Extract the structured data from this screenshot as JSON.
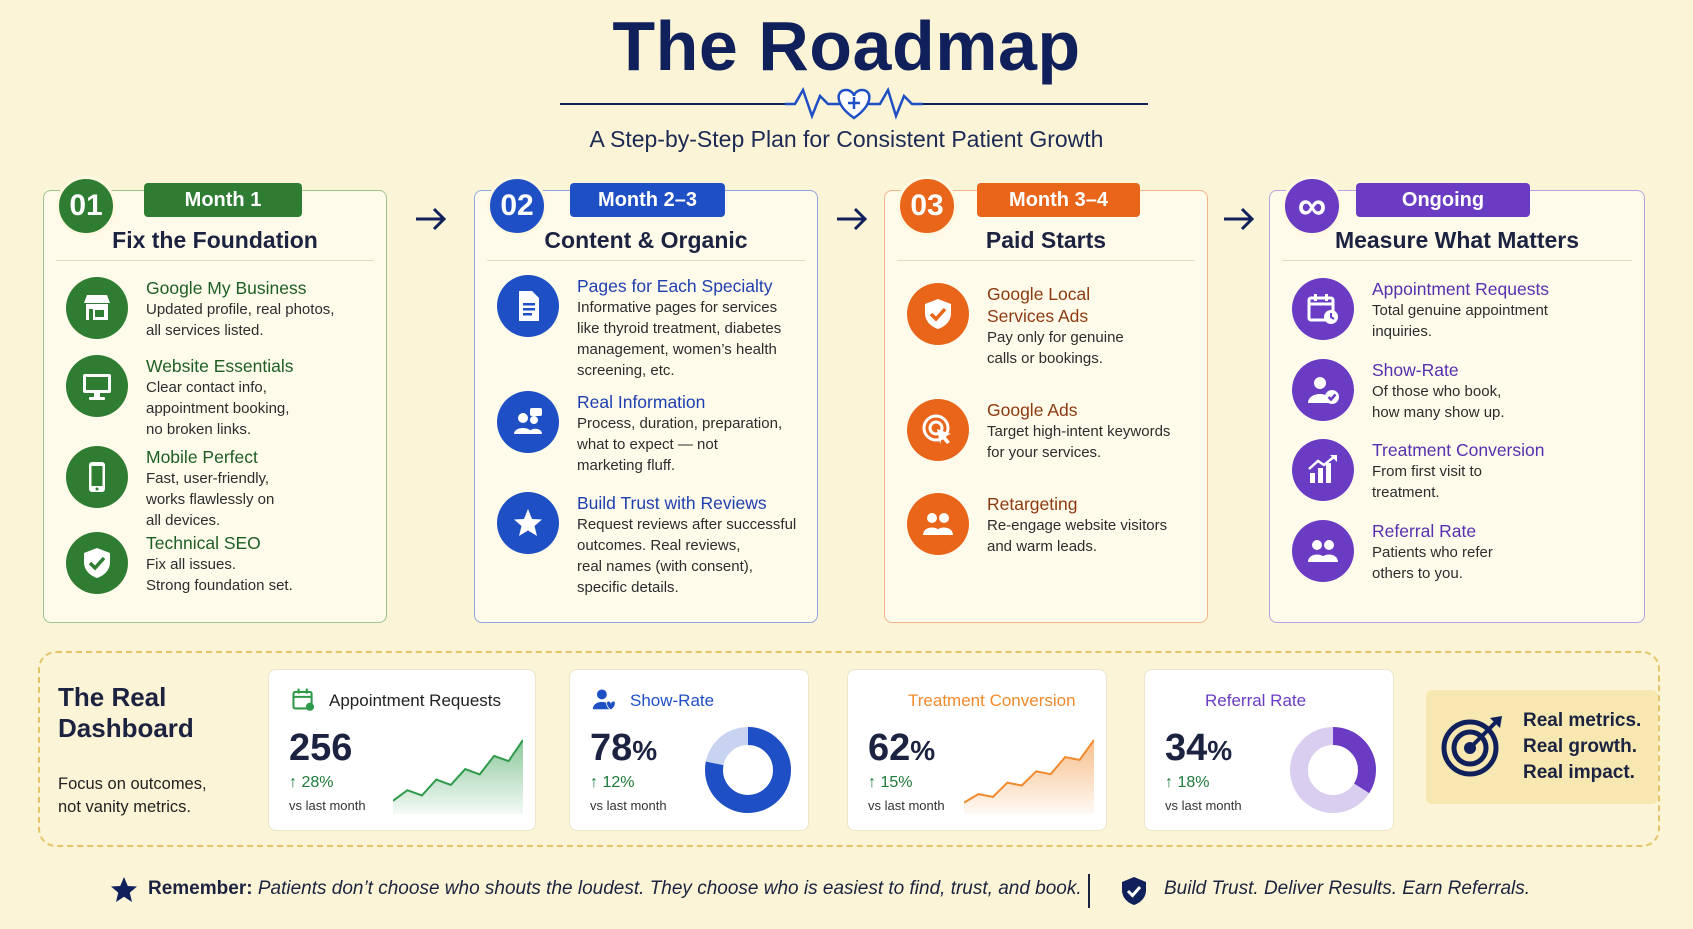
{
  "header": {
    "title": "The Roadmap",
    "subtitle": "A Step-by-Step Plan for Consistent Patient Growth"
  },
  "colors": {
    "green": "#2e7d32",
    "blue": "#1e4fc4",
    "orange": "#e8651a",
    "purple": "#6a3bc3",
    "navy": "#10205a"
  },
  "phases": [
    {
      "number": "01",
      "period": "Month 1",
      "title": "Fix the Foundation",
      "items": [
        {
          "icon": "storefront-icon",
          "heading": "Google My Business",
          "desc": [
            "Updated profile, real photos,",
            "all services listed."
          ]
        },
        {
          "icon": "monitor-icon",
          "heading": "Website Essentials",
          "desc": [
            "Clear contact info,",
            "appointment booking,",
            "no broken links."
          ]
        },
        {
          "icon": "smartphone-icon",
          "heading": "Mobile Perfect",
          "desc": [
            "Fast, user-friendly,",
            "works flawlessly on",
            "all devices."
          ]
        },
        {
          "icon": "shield-check-icon",
          "heading": "Technical SEO",
          "desc": [
            "Fix all issues.",
            "Strong foundation set."
          ]
        }
      ]
    },
    {
      "number": "02",
      "period": "Month 2–3",
      "title": "Content & Organic",
      "items": [
        {
          "icon": "document-icon",
          "heading": "Pages for Each Specialty",
          "desc": [
            "Informative pages for services",
            "like thyroid treatment, diabetes",
            "management, women’s health",
            "screening, etc."
          ]
        },
        {
          "icon": "people-chat-icon",
          "heading": "Real Information",
          "desc": [
            "Process, duration, preparation,",
            "what to expect — not",
            "marketing fluff."
          ]
        },
        {
          "icon": "star-icon",
          "heading": "Build Trust with Reviews",
          "desc": [
            "Request reviews after successful",
            "outcomes. Real reviews,",
            "real names (with consent),",
            "specific details."
          ]
        }
      ]
    },
    {
      "number": "03",
      "period": "Month 3–4",
      "title": "Paid Starts",
      "items": [
        {
          "icon": "shield-check-icon",
          "heading": "Google Local Services Ads",
          "heading_lines": [
            "Google Local",
            "Services Ads"
          ],
          "desc": [
            "Pay only for genuine",
            "calls or bookings."
          ]
        },
        {
          "icon": "target-click-icon",
          "heading": "Google Ads",
          "desc": [
            "Target high-intent keywords",
            "for your services."
          ]
        },
        {
          "icon": "group-icon",
          "heading": "Retargeting",
          "desc": [
            "Re-engage website visitors",
            "and warm leads."
          ]
        }
      ]
    },
    {
      "number": "∞",
      "period": "Ongoing",
      "title": "Measure What Matters",
      "items": [
        {
          "icon": "calendar-clock-icon",
          "heading": "Appointment Requests",
          "desc": [
            "Total genuine appointment",
            "inquiries."
          ]
        },
        {
          "icon": "user-check-icon",
          "heading": "Show-Rate",
          "desc": [
            "Of those who book,",
            "how many show up."
          ]
        },
        {
          "icon": "bar-growth-icon",
          "heading": "Treatment Conversion",
          "desc": [
            "From first visit to",
            "treatment."
          ]
        },
        {
          "icon": "group-icon",
          "heading": "Referral Rate",
          "desc": [
            "Patients who refer",
            "others to you."
          ]
        }
      ]
    }
  ],
  "dashboard": {
    "title_lines": [
      "The Real",
      "Dashboard"
    ],
    "subtitle_lines": [
      "Focus on outcomes,",
      "not vanity metrics."
    ],
    "metrics": [
      {
        "label": "Appointment Requests",
        "icon": "calendar-icon",
        "value": "256",
        "unit": "",
        "change": "28%",
        "note": "vs last month",
        "viz": "area",
        "color": "#2e9a4a",
        "trend": [
          10,
          18,
          14,
          26,
          22,
          34,
          30,
          44,
          40,
          56
        ]
      },
      {
        "label": "Show-Rate",
        "icon": "user-heart-icon",
        "value": "78",
        "unit": "%",
        "change": "12%",
        "note": "vs last month",
        "viz": "donut",
        "color": "#1e4fc4",
        "percent": 78
      },
      {
        "label": "Treatment Conversion",
        "icon": "bar-growth-icon",
        "value": "62",
        "unit": "%",
        "change": "15%",
        "note": "vs last month",
        "viz": "area",
        "color": "#f08a2c",
        "trend": [
          8,
          14,
          12,
          22,
          20,
          30,
          28,
          40,
          38,
          52
        ]
      },
      {
        "label": "Referral Rate",
        "icon": "group-icon",
        "value": "34",
        "unit": "%",
        "change": "18%",
        "note": "vs last month",
        "viz": "donut",
        "color": "#6a3bc3",
        "percent": 34
      }
    ],
    "promo_lines": [
      "Real metrics.",
      "Real growth.",
      "Real impact."
    ]
  },
  "footer": {
    "remember_label": "Remember:",
    "remember_text": "Patients don’t choose who shouts the loudest. They choose who is easiest to find, trust, and book.",
    "tagline": "Build Trust. Deliver Results. Earn Referrals."
  }
}
